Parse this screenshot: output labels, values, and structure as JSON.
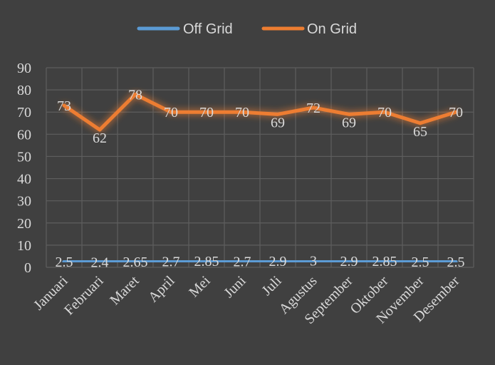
{
  "chart_data": {
    "type": "line",
    "title": "",
    "xlabel": "",
    "ylabel": "",
    "categories": [
      "Januari",
      "Februari",
      "Maret",
      "April",
      "Mei",
      "Juni",
      "Juli",
      "Agustus",
      "September",
      "Oktober",
      "November",
      "Desember"
    ],
    "series": [
      {
        "name": "Off Grid",
        "color": "#5b9bd5",
        "values": [
          2.5,
          2.4,
          2.65,
          2.7,
          2.85,
          2.7,
          2.9,
          3,
          2.9,
          2.85,
          2.5,
          2.5
        ],
        "labels": [
          "2.5",
          "2.4",
          "2.65",
          "2.7",
          "2.85",
          "2.7",
          "2.9",
          "3",
          "2.9",
          "2.85",
          "2.5",
          "2.5"
        ]
      },
      {
        "name": "On Grid",
        "color": "#ed7d31",
        "values": [
          73,
          62,
          78,
          70,
          70,
          70,
          69,
          72,
          69,
          70,
          65,
          70
        ],
        "labels": [
          "73",
          "62",
          "78",
          "70",
          "70",
          "70",
          "69",
          "72",
          "69",
          "70",
          "65",
          "70"
        ]
      }
    ],
    "ylim": [
      0,
      90
    ],
    "yticks": [
      "0",
      "10",
      "20",
      "30",
      "40",
      "50",
      "60",
      "70",
      "80",
      "90"
    ],
    "grid": true,
    "legend_position": "top"
  }
}
